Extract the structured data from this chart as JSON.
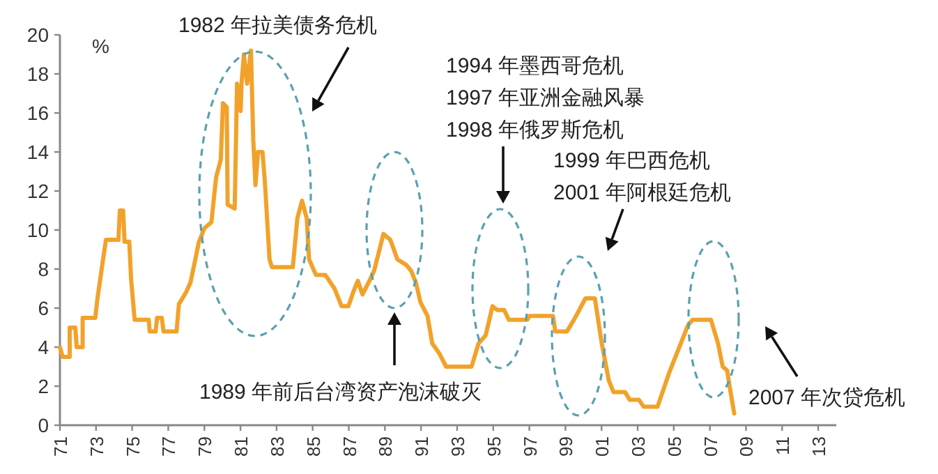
{
  "chart_data": {
    "type": "line",
    "ylabel": "%",
    "x": [
      1971.0,
      1971.15,
      1971.54,
      1971.54,
      1971.85,
      1971.93,
      1972.26,
      1972.26,
      1972.96,
      1973.08,
      1973.39,
      1973.55,
      1974.24,
      1974.32,
      1974.5,
      1974.58,
      1974.84,
      1974.94,
      1975.14,
      1975.92,
      1975.97,
      1976.3,
      1976.38,
      1976.64,
      1976.74,
      1977.46,
      1977.59,
      1977.98,
      1978.23,
      1978.7,
      1979.01,
      1979.39,
      1979.65,
      1979.91,
      1980.03,
      1980.24,
      1980.29,
      1980.68,
      1980.81,
      1981.01,
      1981.06,
      1981.19,
      1981.37,
      1981.58,
      1981.71,
      1981.83,
      1981.97,
      1982.22,
      1982.35,
      1982.61,
      1982.74,
      1983.9,
      1984.15,
      1984.41,
      1984.67,
      1984.8,
      1985.18,
      1985.7,
      1986.21,
      1986.6,
      1986.98,
      1987.24,
      1987.5,
      1987.76,
      1988.14,
      1988.4,
      1988.92,
      1989.3,
      1989.69,
      1990.2,
      1990.46,
      1990.72,
      1990.97,
      1991.36,
      1991.62,
      1992.0,
      1992.39,
      1993.8,
      1994.19,
      1994.58,
      1994.96,
      1995.22,
      1995.61,
      1995.86,
      1996.89,
      1997.02,
      1998.31,
      1998.44,
      1999.08,
      1999.47,
      2000.11,
      2000.63,
      2001.01,
      2001.4,
      2001.66,
      2002.3,
      2002.56,
      2003.07,
      2003.33,
      2004.1,
      2004.75,
      2005.78,
      2006.03,
      2007.06,
      2007.45,
      2007.71,
      2007.96,
      2008.09,
      2008.35
    ],
    "values": [
      4.0,
      3.5,
      3.5,
      5.0,
      5.0,
      4.0,
      4.0,
      5.5,
      5.5,
      6.5,
      8.5,
      9.5,
      9.5,
      11.0,
      11.0,
      9.4,
      9.4,
      7.5,
      5.4,
      5.4,
      4.8,
      4.8,
      5.5,
      5.5,
      4.8,
      4.8,
      6.2,
      6.8,
      7.3,
      9.4,
      10.1,
      10.4,
      12.7,
      13.6,
      16.5,
      16.3,
      11.3,
      11.1,
      17.5,
      16.1,
      17.5,
      19.0,
      17.5,
      19.2,
      14.6,
      12.3,
      14.0,
      14.0,
      12.5,
      8.5,
      8.1,
      8.1,
      10.6,
      11.5,
      10.6,
      8.5,
      7.7,
      7.7,
      7.0,
      6.1,
      6.1,
      6.8,
      7.4,
      6.7,
      7.4,
      7.9,
      9.8,
      9.5,
      8.5,
      8.2,
      7.9,
      7.3,
      6.3,
      5.6,
      4.2,
      3.7,
      3.0,
      3.0,
      4.2,
      4.6,
      6.1,
      5.9,
      5.9,
      5.4,
      5.4,
      5.6,
      5.6,
      4.8,
      4.8,
      5.4,
      6.5,
      6.5,
      4.2,
      2.3,
      1.7,
      1.7,
      1.3,
      1.3,
      0.95,
      0.95,
      2.7,
      5.1,
      5.4,
      5.4,
      4.2,
      3.0,
      2.8,
      2.0,
      0.6
    ],
    "color": "#f2a22a",
    "grid": false,
    "marker": "none",
    "line_style": "solid",
    "xlim": [
      1971,
      2014
    ],
    "ylim": [
      0,
      20
    ],
    "xticks": [
      {
        "value": 1971,
        "label": "71"
      },
      {
        "value": 1973,
        "label": "73"
      },
      {
        "value": 1975,
        "label": "75"
      },
      {
        "value": 1977,
        "label": "77"
      },
      {
        "value": 1979,
        "label": "79"
      },
      {
        "value": 1981,
        "label": "81"
      },
      {
        "value": 1983,
        "label": "83"
      },
      {
        "value": 1985,
        "label": "85"
      },
      {
        "value": 1987,
        "label": "87"
      },
      {
        "value": 1989,
        "label": "89"
      },
      {
        "value": 1991,
        "label": "91"
      },
      {
        "value": 1993,
        "label": "93"
      },
      {
        "value": 1995,
        "label": "95"
      },
      {
        "value": 1997,
        "label": "97"
      },
      {
        "value": 1999,
        "label": "99"
      },
      {
        "value": 2001,
        "label": "01"
      },
      {
        "value": 2003,
        "label": "03"
      },
      {
        "value": 2005,
        "label": "05"
      },
      {
        "value": 2007,
        "label": "07"
      },
      {
        "value": 2009,
        "label": "09"
      },
      {
        "value": 2011,
        "label": "11"
      },
      {
        "value": 2013,
        "label": "13"
      }
    ],
    "yticks": [
      0,
      2,
      4,
      6,
      8,
      10,
      12,
      14,
      16,
      18,
      20
    ],
    "annotations": [
      "1982 年拉美债务危机",
      "1994 年墨西哥危机",
      "1997 年亚洲金融风暴",
      "1998 年俄罗斯危机",
      "1999 年巴西危机",
      "2001 年阿根廷危机",
      "1989 年前后台湾资产泡沫破灭",
      "2007 年次贷危机"
    ]
  }
}
